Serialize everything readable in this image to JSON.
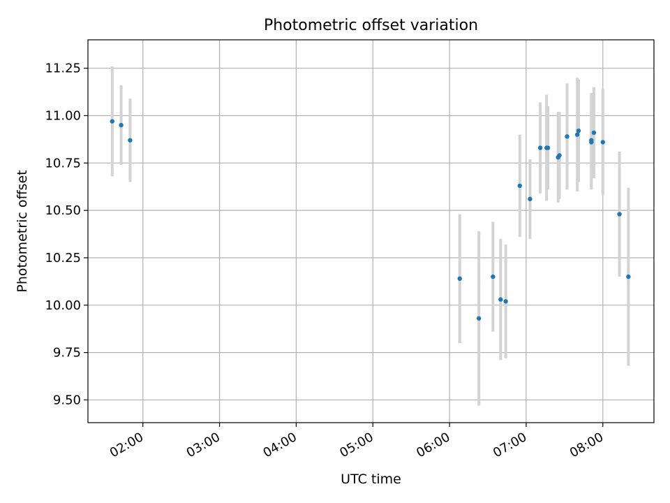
{
  "chart_data": {
    "type": "scatter",
    "title": "Photometric offset variation",
    "xlabel": "UTC time",
    "ylabel": "Photometric offset",
    "xlim": [
      "01:17",
      "08:40"
    ],
    "ylim": [
      9.38,
      11.4
    ],
    "grid": true,
    "x_ticks": [
      "02:00",
      "03:00",
      "04:00",
      "05:00",
      "06:00",
      "07:00",
      "08:00"
    ],
    "y_ticks": [
      9.5,
      9.75,
      10.0,
      10.25,
      10.5,
      10.75,
      11.0,
      11.25
    ],
    "y_tick_labels": [
      "9.50",
      "9.75",
      "10.00",
      "10.25",
      "10.50",
      "10.75",
      "11.00",
      "11.25"
    ],
    "marker_color": "#1f77b4",
    "errorbar_color": "#d3d3d3",
    "points": [
      {
        "t": "01:36",
        "y": 10.97,
        "err": 0.29
      },
      {
        "t": "01:43",
        "y": 10.95,
        "err": 0.21
      },
      {
        "t": "01:50",
        "y": 10.87,
        "err": 0.22
      },
      {
        "t": "06:08",
        "y": 10.14,
        "err": 0.34
      },
      {
        "t": "06:23",
        "y": 9.93,
        "err": 0.46
      },
      {
        "t": "06:34",
        "y": 10.15,
        "err": 0.29
      },
      {
        "t": "06:40",
        "y": 10.03,
        "err": 0.32
      },
      {
        "t": "06:44",
        "y": 10.02,
        "err": 0.3
      },
      {
        "t": "06:55",
        "y": 10.63,
        "err": 0.27
      },
      {
        "t": "07:03",
        "y": 10.56,
        "err": 0.21
      },
      {
        "t": "07:11",
        "y": 10.83,
        "err": 0.24
      },
      {
        "t": "07:16",
        "y": 10.83,
        "err": 0.28
      },
      {
        "t": "07:17",
        "y": 10.83,
        "err": 0.22
      },
      {
        "t": "07:25",
        "y": 10.78,
        "err": 0.24
      },
      {
        "t": "07:26",
        "y": 10.79,
        "err": 0.23
      },
      {
        "t": "07:32",
        "y": 10.89,
        "err": 0.28
      },
      {
        "t": "07:40",
        "y": 10.9,
        "err": 0.3
      },
      {
        "t": "07:41",
        "y": 10.92,
        "err": 0.27
      },
      {
        "t": "07:51",
        "y": 10.86,
        "err": 0.25
      },
      {
        "t": "07:51",
        "y": 10.87,
        "err": 0.25
      },
      {
        "t": "07:53",
        "y": 10.91,
        "err": 0.24
      },
      {
        "t": "08:00",
        "y": 10.86,
        "err": 0.28
      },
      {
        "t": "08:13",
        "y": 10.48,
        "err": 0.33
      },
      {
        "t": "08:20",
        "y": 10.15,
        "err": 0.47
      }
    ]
  }
}
